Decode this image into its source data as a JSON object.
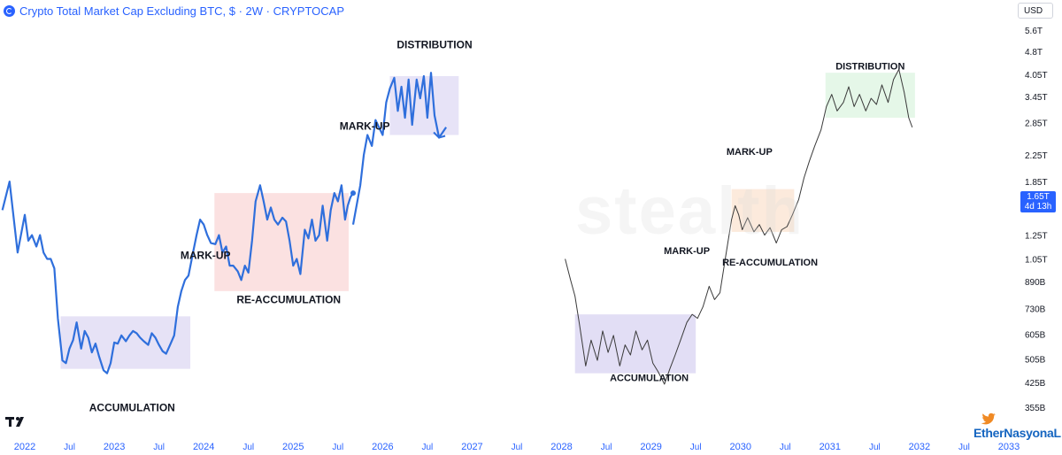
{
  "header": {
    "title": "Crypto Total Market Cap Excluding BTC, $ · 2W · CRYPTOCAP",
    "currency": "USD"
  },
  "price_badge": {
    "value": "1.65T",
    "countdown": "4d 13h"
  },
  "watermark": {
    "text": "stealth"
  },
  "credit": {
    "text": "EtherNasyonaL"
  },
  "colors": {
    "series_blue": "#2f6fdc",
    "series_black": "#3a3a3a",
    "accumulation_zone": "#ddd8f3",
    "reaccumulation_zone": "#fadcdc",
    "distribution_zone": "#e3def6",
    "reaccumulation_zone_right": "#fbe6d6",
    "distribution_zone_right": "#e2f6e6",
    "axis_text": "#2962ff"
  },
  "chart_data": {
    "type": "line",
    "title": "Crypto Total Market Cap Excluding BTC",
    "y_scale": "log",
    "ylim": [
      "355B",
      "5.6T"
    ],
    "y_ticks": [
      "5.6T",
      "4.8T",
      "4.05T",
      "3.45T",
      "2.85T",
      "2.25T",
      "1.85T",
      "1.65T",
      "1.25T",
      "1.05T",
      "890B",
      "730B",
      "605B",
      "505B",
      "425B",
      "355B"
    ],
    "x_ticks": [
      "2022",
      "Jul",
      "2023",
      "Jul",
      "2024",
      "Jul",
      "2025",
      "Jul",
      "2026",
      "Jul",
      "2027",
      "Jul",
      "2028",
      "Jul",
      "2029",
      "Jul",
      "2030",
      "Jul",
      "2031",
      "Jul",
      "2032",
      "Jul",
      "2033"
    ],
    "annotations": [
      {
        "text": "ACCUMULATION"
      },
      {
        "text": "MARK-UP"
      },
      {
        "text": "RE-ACCUMULATION"
      },
      {
        "text": "MARK-UP"
      },
      {
        "text": "DISTRIBUTION"
      },
      {
        "text": "ACCUMULATION"
      },
      {
        "text": "MARK-UP"
      },
      {
        "text": "RE-ACCUMULATION"
      },
      {
        "text": "MARK-UP"
      },
      {
        "text": "DISTRIBUTION"
      }
    ],
    "series": [
      {
        "x": [
          2021.75,
          2021.83,
          2021.92,
          2022.0,
          2022.04,
          2022.08,
          2022.13,
          2022.17,
          2022.21,
          2022.25,
          2022.29,
          2022.33,
          2022.37,
          2022.42,
          2022.46,
          2022.5,
          2022.54,
          2022.58,
          2022.63,
          2022.67,
          2022.71,
          2022.75,
          2022.79,
          2022.83,
          2022.88,
          2022.92,
          2022.96,
          2023.0,
          2023.04,
          2023.08,
          2023.13,
          2023.17,
          2023.21,
          2023.25,
          2023.29,
          2023.33,
          2023.38,
          2023.42,
          2023.46,
          2023.5,
          2023.54,
          2023.58,
          2023.63,
          2023.67,
          2023.71,
          2023.75,
          2023.79,
          2023.83,
          2023.88,
          2023.92,
          2023.96,
          2024.0,
          2024.04,
          2024.08,
          2024.13,
          2024.17,
          2024.21,
          2024.25,
          2024.29,
          2024.33,
          2024.38,
          2024.42,
          2024.46,
          2024.5,
          2024.54,
          2024.58,
          2024.63,
          2024.67,
          2024.71,
          2024.75,
          2024.79,
          2024.83,
          2024.88,
          2024.92,
          2024.96,
          2025.0,
          2025.04,
          2025.08,
          2025.13,
          2025.17,
          2025.21,
          2025.25,
          2025.29,
          2025.33,
          2025.38,
          2025.42,
          2025.46,
          2025.5,
          2025.54,
          2025.58,
          2025.61,
          2025.64,
          2025.67
        ],
        "y": [
          1500000000000.0,
          1850000000000.0,
          1100000000000.0,
          1450000000000.0,
          1200000000000.0,
          1250000000000.0,
          1150000000000.0,
          1250000000000.0,
          1100000000000.0,
          1050000000000.0,
          1050000000000.0,
          980000000000.0,
          680000000000.0,
          500000000000.0,
          490000000000.0,
          545000000000.0,
          580000000000.0,
          660000000000.0,
          545000000000.0,
          620000000000.0,
          590000000000.0,
          530000000000.0,
          565000000000.0,
          515000000000.0,
          465000000000.0,
          455000000000.0,
          490000000000.0,
          570000000000.0,
          565000000000.0,
          600000000000.0,
          575000000000.0,
          600000000000.0,
          620000000000.0,
          610000000000.0,
          590000000000.0,
          575000000000.0,
          560000000000.0,
          610000000000.0,
          590000000000.0,
          560000000000.0,
          535000000000.0,
          525000000000.0,
          565000000000.0,
          600000000000.0,
          740000000000.0,
          830000000000.0,
          900000000000.0,
          930000000000.0,
          1100000000000.0,
          1250000000000.0,
          1400000000000.0,
          1350000000000.0,
          1250000000000.0,
          1180000000000.0,
          1170000000000.0,
          1250000000000.0,
          1100000000000.0,
          1150000000000.0,
          1000000000000.0,
          1000000000000.0,
          960000000000.0,
          900000000000.0,
          1000000000000.0,
          950000000000.0,
          1200000000000.0,
          1600000000000.0,
          1800000000000.0,
          1600000000000.0,
          1400000000000.0,
          1530000000000.0,
          1400000000000.0,
          1350000000000.0,
          1420000000000.0,
          1380000000000.0,
          1200000000000.0,
          1000000000000.0,
          1050000000000.0,
          940000000000.0,
          1300000000000.0,
          1220000000000.0,
          1400000000000.0,
          1200000000000.0,
          1250000000000.0,
          1550000000000.0,
          1200000000000.0,
          1500000000000.0,
          1700000000000.0,
          1600000000000.0,
          1800000000000.0,
          1400000000000.0,
          1550000000000.0,
          1650000000000.0,
          1700000000000.0
        ]
      },
      {
        "x": [
          2025.67,
          2025.75,
          2025.79,
          2025.83,
          2025.88,
          2025.92,
          2026.0,
          2026.04,
          2026.08,
          2026.13,
          2026.17,
          2026.21,
          2026.25,
          2026.29,
          2026.33,
          2026.38,
          2026.42,
          2026.46,
          2026.5,
          2026.54,
          2026.58,
          2026.63,
          2026.67,
          2026.71
        ],
        "y": [
          1350000000000.0,
          1800000000000.0,
          2250000000000.0,
          2600000000000.0,
          2400000000000.0,
          2900000000000.0,
          2600000000000.0,
          3300000000000.0,
          3650000000000.0,
          3950000000000.0,
          3100000000000.0,
          3700000000000.0,
          2950000000000.0,
          3900000000000.0,
          2800000000000.0,
          3900000000000.0,
          3400000000000.0,
          4000000000000.0,
          2950000000000.0,
          4100000000000.0,
          3000000000000.0,
          2550000000000.0,
          2650000000000.0,
          2750000000000.0
        ]
      },
      {
        "x": [
          2028.04,
          2028.1,
          2028.15,
          2028.2,
          2028.27,
          2028.33,
          2028.4,
          2028.46,
          2028.52,
          2028.58,
          2028.65,
          2028.71,
          2028.77,
          2028.83,
          2028.9,
          2028.96,
          2029.02,
          2029.08,
          2029.15,
          2029.21,
          2029.27,
          2029.33,
          2029.4,
          2029.46,
          2029.52,
          2029.58,
          2029.65,
          2029.71,
          2029.77,
          2029.83,
          2029.9,
          2029.94,
          2029.98,
          2030.02,
          2030.08,
          2030.15,
          2030.21,
          2030.27,
          2030.33,
          2030.4,
          2030.46,
          2030.52,
          2030.58,
          2030.65,
          2030.71,
          2030.77,
          2030.83,
          2030.9,
          2030.96,
          2031.02,
          2031.08,
          2031.15,
          2031.21,
          2031.27,
          2031.33,
          2031.4,
          2031.46,
          2031.52,
          2031.58,
          2031.65,
          2031.71,
          2031.77,
          2031.83,
          2031.88,
          2031.92
        ],
        "y": [
          1050000000000.0,
          900000000000.0,
          800000000000.0,
          650000000000.0,
          480000000000.0,
          580000000000.0,
          500000000000.0,
          620000000000.0,
          530000000000.0,
          600000000000.0,
          480000000000.0,
          560000000000.0,
          520000000000.0,
          620000000000.0,
          540000000000.0,
          580000000000.0,
          490000000000.0,
          460000000000.0,
          420000000000.0,
          470000000000.0,
          520000000000.0,
          580000000000.0,
          660000000000.0,
          700000000000.0,
          680000000000.0,
          740000000000.0,
          860000000000.0,
          780000000000.0,
          820000000000.0,
          1050000000000.0,
          1400000000000.0,
          1550000000000.0,
          1450000000000.0,
          1300000000000.0,
          1420000000000.0,
          1280000000000.0,
          1350000000000.0,
          1250000000000.0,
          1320000000000.0,
          1180000000000.0,
          1300000000000.0,
          1330000000000.0,
          1450000000000.0,
          1620000000000.0,
          1900000000000.0,
          2150000000000.0,
          2400000000000.0,
          2700000000000.0,
          3200000000000.0,
          3500000000000.0,
          3100000000000.0,
          3300000000000.0,
          3700000000000.0,
          3200000000000.0,
          3500000000000.0,
          3100000000000.0,
          3400000000000.0,
          3250000000000.0,
          3750000000000.0,
          3300000000000.0,
          3900000000000.0,
          4200000000000.0,
          3550000000000.0,
          2950000000000.0,
          2750000000000.0
        ]
      }
    ]
  }
}
